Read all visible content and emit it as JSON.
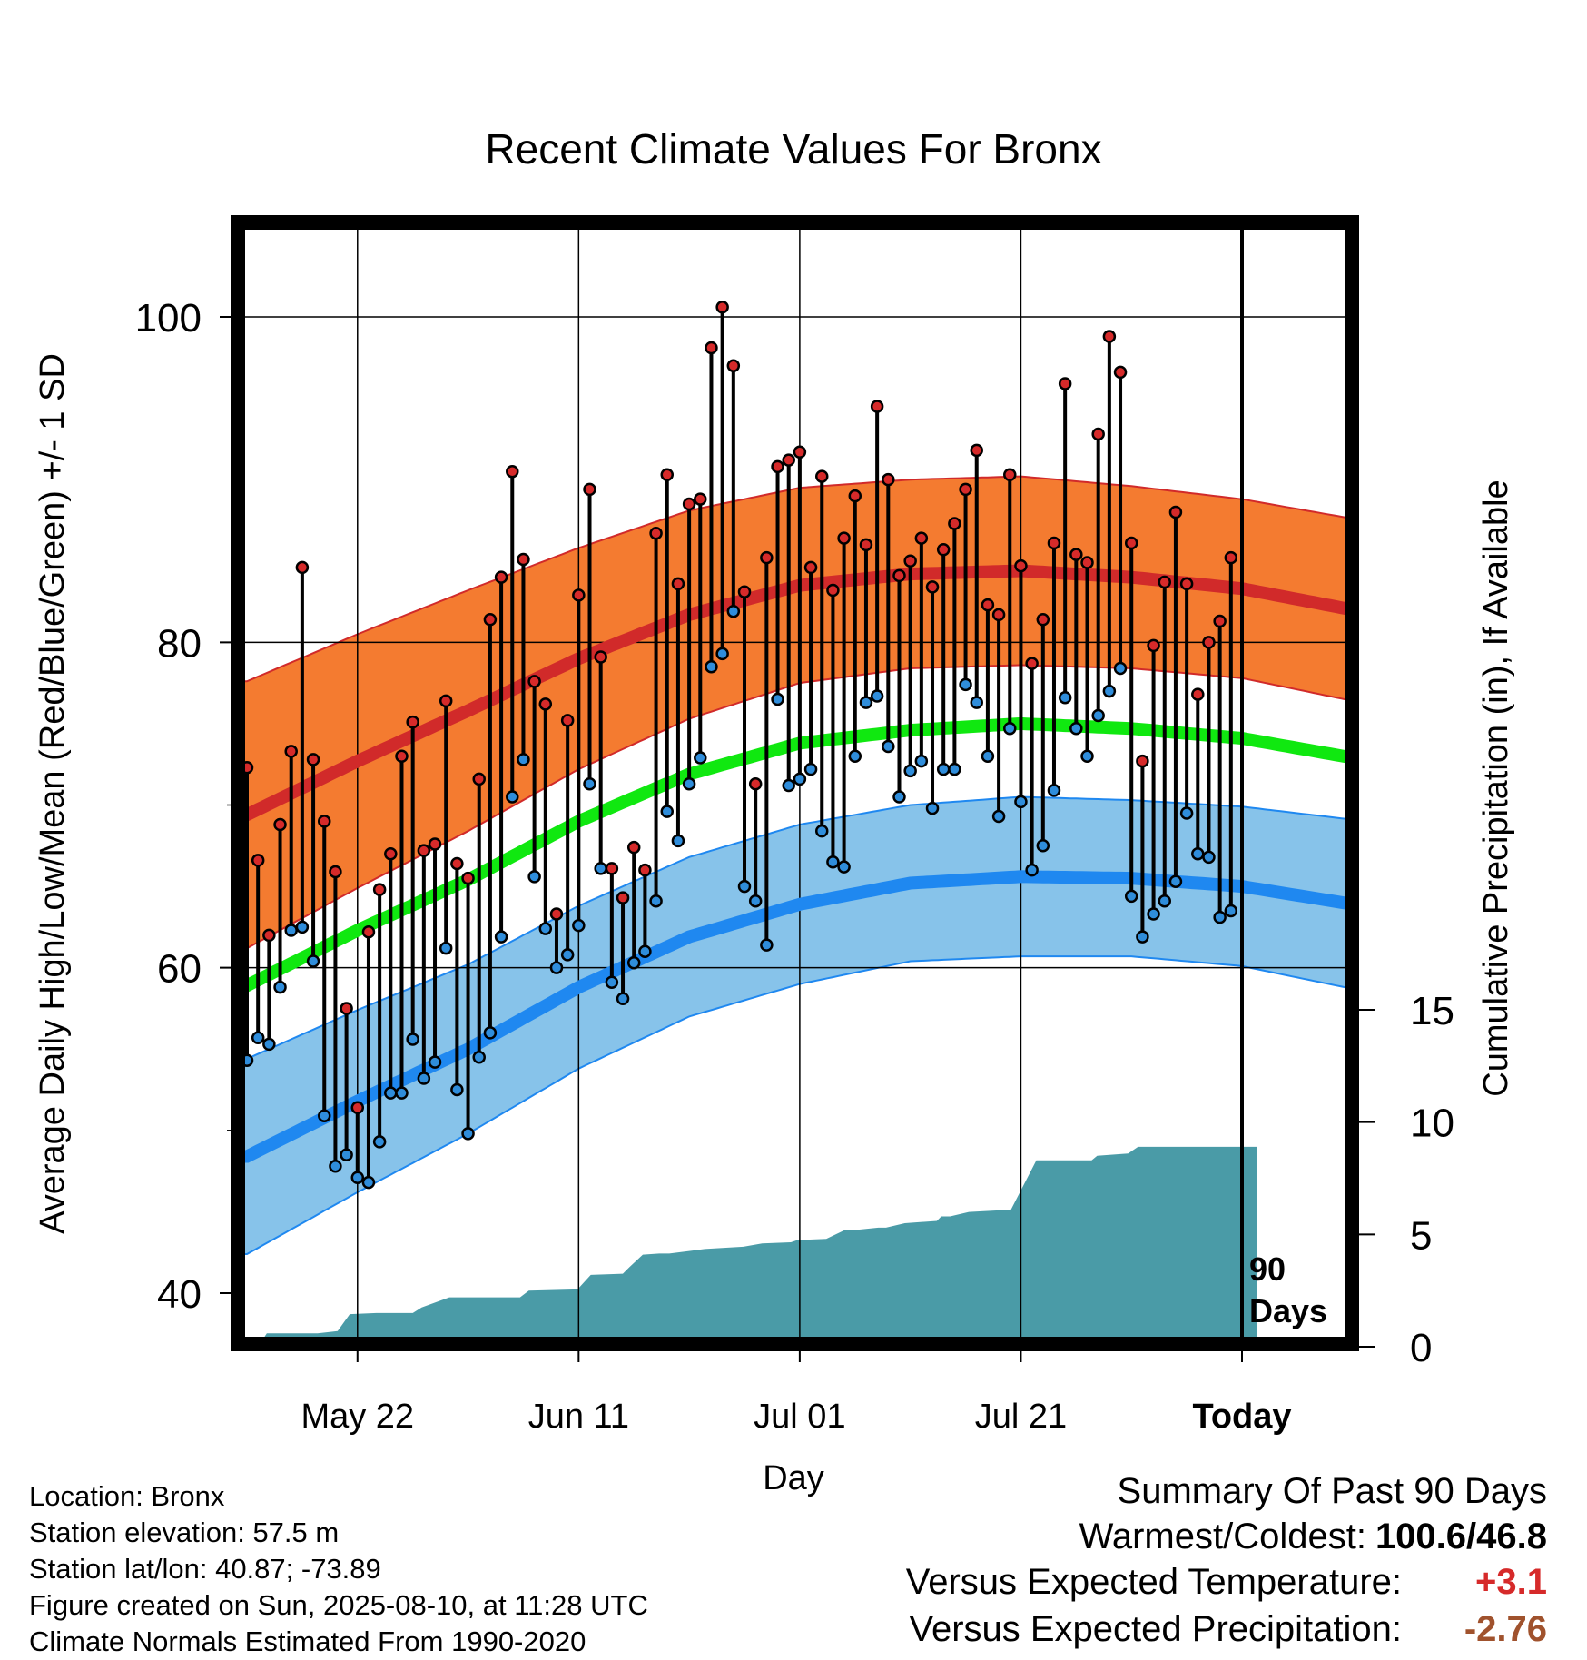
{
  "chart_data": {
    "type": "line",
    "title": "Recent Climate Values For Bronx",
    "xlabel": "Day",
    "ylabel": "Average Daily High/Low/Mean (Red/Blue/Green) +/- 1 SD",
    "y2label": "Cumulative Precipitation (in), If Available",
    "x_tick_labels": [
      "May 22",
      "Jun 11",
      "Jul 01",
      "Jul 21",
      "Today"
    ],
    "y_tick_labels": [
      "40",
      "60",
      "80",
      "100"
    ],
    "y2_tick_labels": [
      "0",
      "5",
      "10",
      "15"
    ],
    "ylim": [
      37.5,
      105.5
    ],
    "y2lim": [
      0,
      15
    ],
    "today_line_label": "90\nDays",
    "grid": true,
    "colors": {
      "high_band": "#f47b30",
      "high_mean_line": "#d12a2a",
      "low_band": "#87c3ea",
      "low_mean_line": "#1f88f0",
      "mean_line": "#10e810",
      "precip_fill": "#4a9ba7",
      "high_marker": "#d62a2a",
      "low_marker": "#2f8ddb"
    },
    "normals_keypoints": {
      "day": [
        0,
        10,
        20,
        30,
        40,
        50,
        60,
        70,
        80,
        90,
        100
      ],
      "high_mean": [
        69.4,
        72.7,
        75.8,
        79.0,
        81.7,
        83.5,
        84.2,
        84.4,
        84.0,
        83.3,
        82.0
      ],
      "high_sd": [
        8.2,
        7.8,
        7.4,
        6.8,
        6.4,
        6.0,
        5.8,
        5.8,
        5.6,
        5.5,
        5.6
      ],
      "low_mean": [
        48.4,
        51.8,
        55.0,
        58.8,
        61.9,
        63.9,
        65.2,
        65.6,
        65.5,
        65.0,
        63.9
      ],
      "low_sd": [
        6.0,
        5.6,
        5.2,
        5.0,
        4.9,
        4.9,
        4.8,
        4.9,
        4.8,
        4.9,
        5.2
      ],
      "mean": [
        58.9,
        62.3,
        65.4,
        69.0,
        71.9,
        73.8,
        74.6,
        75.0,
        74.7,
        74.1,
        72.9
      ]
    },
    "observed_highs": [
      72.3,
      66.6,
      62.0,
      68.8,
      73.3,
      84.6,
      72.8,
      69.0,
      65.9,
      57.5,
      51.4,
      62.2,
      64.8,
      67.0,
      73.0,
      75.1,
      67.2,
      67.6,
      76.4,
      66.4,
      65.5,
      71.6,
      81.4,
      84.0,
      90.5,
      85.1,
      77.6,
      76.2,
      63.3,
      75.2,
      82.9,
      89.4,
      79.1,
      66.1,
      64.3,
      67.4,
      66.0,
      86.7,
      90.3,
      83.6,
      88.5,
      88.8,
      98.1,
      100.6,
      97.0,
      83.1,
      71.3,
      85.2,
      90.8,
      91.2,
      91.7,
      84.6,
      90.2,
      83.2,
      86.4,
      89.0,
      86.0,
      94.5,
      90.0,
      84.1,
      85.0,
      86.4,
      83.4,
      85.7,
      87.3,
      89.4,
      91.8,
      82.3,
      81.7,
      90.3,
      84.7,
      78.7,
      81.4,
      86.1,
      95.9,
      85.4,
      84.9,
      92.8,
      98.8,
      96.6,
      86.1,
      72.7,
      79.8,
      83.7,
      88.0,
      83.6,
      76.8,
      80.0,
      81.3,
      85.2
    ],
    "observed_lows": [
      54.3,
      55.7,
      55.3,
      58.8,
      62.3,
      62.5,
      60.4,
      50.9,
      47.8,
      48.5,
      47.1,
      46.8,
      49.3,
      52.3,
      52.3,
      55.6,
      53.2,
      54.2,
      61.2,
      52.5,
      49.8,
      54.5,
      56.0,
      61.9,
      70.5,
      72.8,
      65.6,
      62.4,
      60.0,
      60.8,
      62.6,
      71.3,
      66.1,
      59.1,
      58.1,
      60.3,
      61.0,
      64.1,
      69.6,
      67.8,
      71.3,
      72.9,
      78.5,
      79.3,
      81.9,
      65.0,
      64.1,
      61.4,
      76.5,
      71.2,
      71.6,
      72.2,
      68.4,
      66.5,
      66.2,
      73.0,
      76.3,
      76.7,
      73.6,
      70.5,
      72.1,
      72.7,
      69.8,
      72.2,
      72.2,
      77.4,
      76.3,
      73.0,
      69.3,
      74.7,
      70.2,
      66.0,
      67.5,
      70.9,
      76.6,
      74.7,
      73.0,
      75.5,
      77.0,
      78.4,
      64.4,
      61.9,
      63.3,
      64.1,
      65.3,
      69.5,
      67.0,
      66.8,
      63.1,
      63.5
    ],
    "cumulative_precip_keypoints": {
      "day": [
        0,
        1,
        1.8,
        5,
        6.4,
        8.2,
        9.3,
        11.7,
        15,
        15.8,
        18.3,
        24.7,
        25.5,
        29.9,
        31.1,
        34,
        34.6,
        35.8,
        37.3,
        38.2,
        41.4,
        44.9,
        46.6,
        49.2,
        49.8,
        52.4,
        54.1,
        55.1,
        57.1,
        57.8,
        59.5,
        62.4,
        62.8,
        63.6,
        65.3,
        69.1,
        71.4,
        76.4,
        76.9,
        79.7,
        80.6,
        90,
        91.4
      ],
      "inches": [
        0,
        0,
        0.6,
        0.6,
        0.6,
        0.7,
        1.45,
        1.5,
        1.5,
        1.75,
        2.2,
        2.2,
        2.5,
        2.55,
        3.2,
        3.25,
        3.55,
        4.1,
        4.15,
        4.15,
        4.35,
        4.45,
        4.6,
        4.65,
        4.75,
        4.8,
        5.2,
        5.2,
        5.3,
        5.3,
        5.5,
        5.6,
        5.8,
        5.8,
        6.0,
        6.1,
        8.3,
        8.3,
        8.5,
        8.6,
        8.9,
        8.9,
        8.9
      ]
    },
    "today_index": 90,
    "x_tick_day": [
      10,
      30,
      50,
      70,
      90
    ]
  },
  "info": {
    "location": "Location: Bronx",
    "elevation": "Station elevation: 57.5 m",
    "latlon": "Station lat/lon: 40.87; -73.89",
    "created": "Figure created on Sun, 2025-08-10, at 11:28 UTC",
    "normals": "Climate Normals Estimated From 1990-2020"
  },
  "summary": {
    "title": "Summary Of Past 90 Days",
    "warmest_label": "Warmest/Coldest:",
    "warmest_value": "100.6/46.8",
    "temp_label": "Versus Expected Temperature:",
    "temp_value": "+3.1",
    "temp_color": "#d62a2a",
    "precip_label": "Versus Expected Precipitation:",
    "precip_value": "-2.76",
    "precip_color": "#a0522d"
  }
}
